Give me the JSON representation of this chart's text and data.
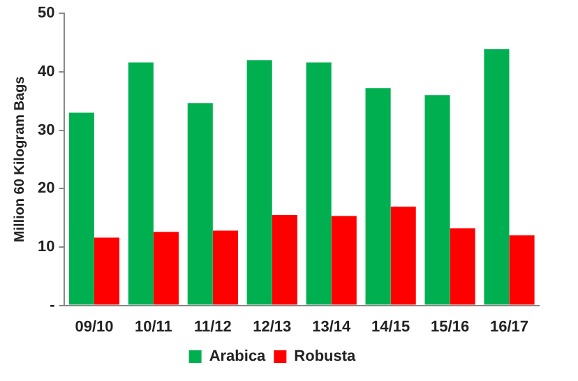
{
  "chart_data": {
    "type": "bar",
    "ylabel": "Million 60 Kilogram Bags",
    "categories": [
      "09/10",
      "10/11",
      "11/12",
      "12/13",
      "13/14",
      "14/15",
      "15/16",
      "16/17"
    ],
    "series": [
      {
        "name": "Arabica",
        "color": "#00b050",
        "values": [
          33,
          41.6,
          34.6,
          42,
          41.6,
          37.2,
          36,
          43.9
        ]
      },
      {
        "name": "Robusta",
        "color": "#ff0000",
        "values": [
          11.6,
          12.6,
          12.8,
          15.5,
          15.3,
          16.9,
          13.2,
          12
        ]
      }
    ],
    "ylim": [
      0,
      50
    ],
    "yticks": [
      {
        "value": 0,
        "label": "-"
      },
      10,
      20,
      30,
      40,
      50
    ],
    "grid": false,
    "legend": "bottom"
  }
}
